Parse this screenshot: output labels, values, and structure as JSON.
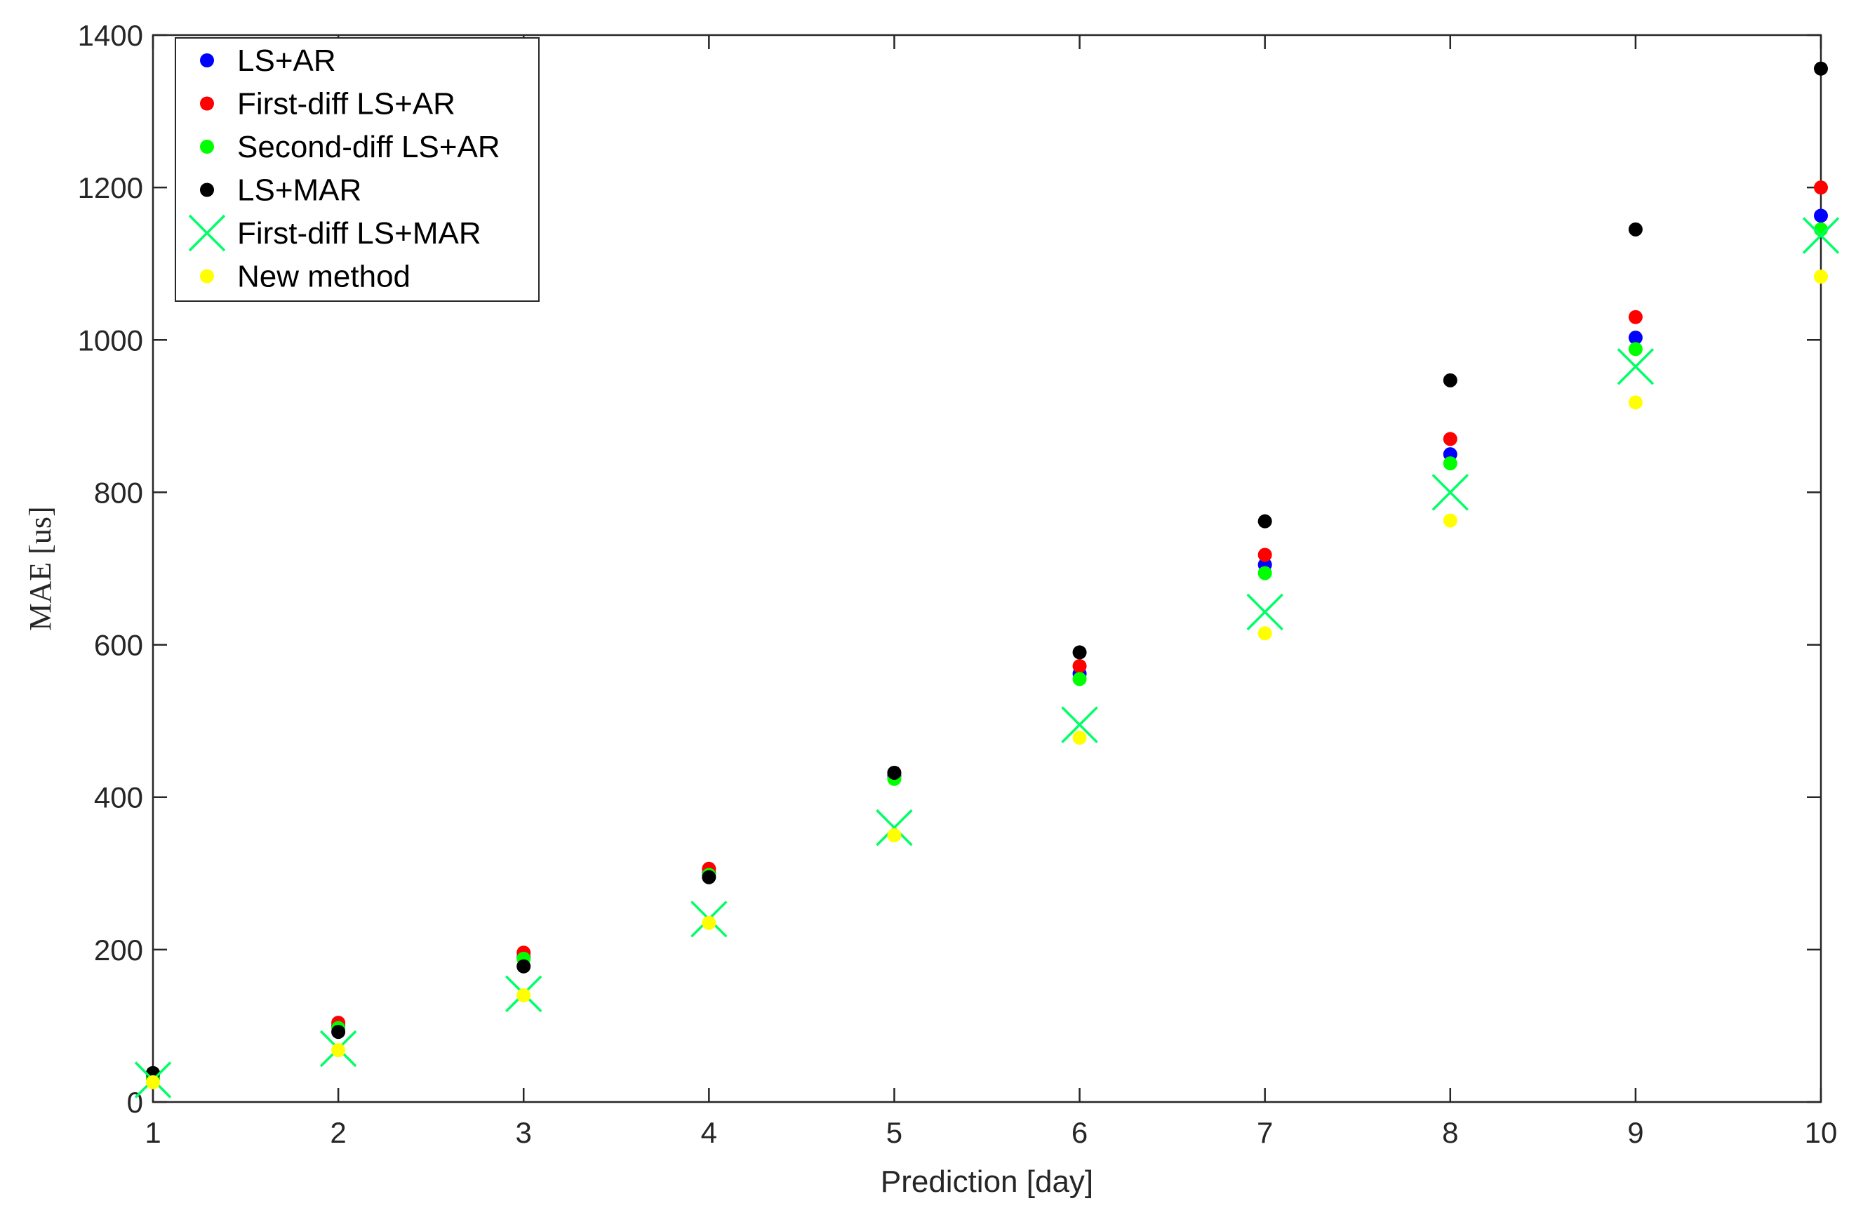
{
  "chart_data": {
    "type": "scatter",
    "title": "",
    "xlabel": "Prediction [day]",
    "ylabel": "MAE [us]",
    "x": [
      1,
      2,
      3,
      4,
      5,
      6,
      7,
      8,
      9,
      10
    ],
    "xlim": [
      1,
      10
    ],
    "ylim": [
      0,
      1400
    ],
    "xticks": [
      1,
      2,
      3,
      4,
      5,
      6,
      7,
      8,
      9,
      10
    ],
    "yticks": [
      0,
      200,
      400,
      600,
      800,
      1000,
      1200,
      1400
    ],
    "grid": false,
    "legend_position": "top-left",
    "series": [
      {
        "name": "LS+AR",
        "marker": "dot",
        "color": "#0000ff",
        "values": [
          32,
          100,
          190,
          300,
          428,
          562,
          705,
          850,
          1003,
          1163
        ]
      },
      {
        "name": "First-diff LS+AR",
        "marker": "dot",
        "color": "#ff0000",
        "values": [
          36,
          104,
          196,
          306,
          432,
          572,
          718,
          870,
          1030,
          1200
        ]
      },
      {
        "name": "Second-diff LS+AR",
        "marker": "dot",
        "color": "#00ff00",
        "values": [
          31,
          97,
          188,
          298,
          424,
          555,
          694,
          838,
          988,
          1145
        ]
      },
      {
        "name": "LS+MAR",
        "marker": "dot",
        "color": "#000000",
        "values": [
          38,
          92,
          178,
          295,
          432,
          590,
          762,
          947,
          1145,
          1356
        ]
      },
      {
        "name": "First-diff LS+MAR",
        "marker": "x",
        "color": "#00ff66",
        "values": [
          29,
          70,
          142,
          240,
          360,
          495,
          643,
          800,
          965,
          1137
        ]
      },
      {
        "name": "New method",
        "marker": "dot",
        "color": "#ffff00",
        "values": [
          26,
          68,
          140,
          235,
          350,
          478,
          615,
          763,
          918,
          1083
        ]
      }
    ]
  }
}
